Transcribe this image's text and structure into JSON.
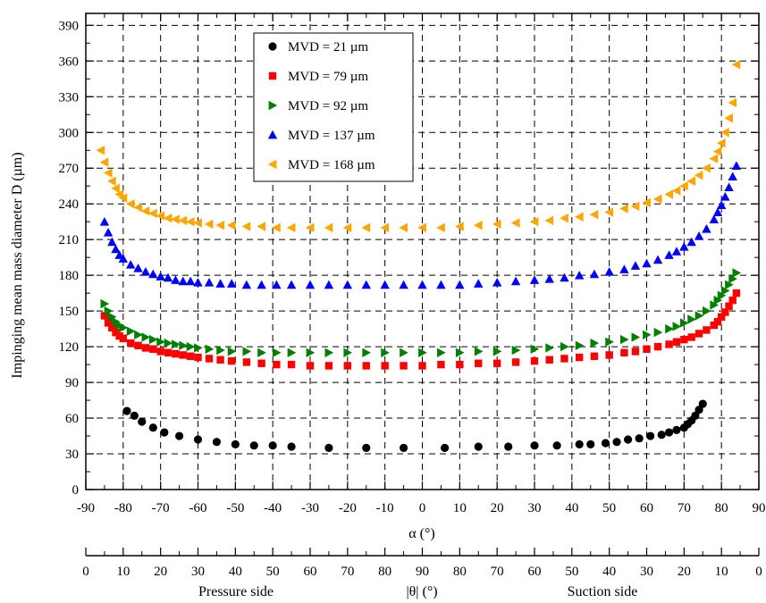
{
  "chart_data": {
    "type": "scatter",
    "ylabel": "Impinging mean mass diameter D (µm)",
    "xlabel": "α (°)",
    "x2label": "|θ| (°)",
    "x2_left_caption": "Pressure side",
    "x2_right_caption": "Suction side",
    "xlim": [
      -90,
      90
    ],
    "ylim": [
      0,
      400
    ],
    "xticks": [
      "-90",
      "-80",
      "-70",
      "-60",
      "-50",
      "-40",
      "-30",
      "-20",
      "-10",
      "0",
      "10",
      "20",
      "30",
      "40",
      "50",
      "60",
      "70",
      "80",
      "90"
    ],
    "yticks": [
      "0",
      "30",
      "60",
      "90",
      "120",
      "150",
      "180",
      "210",
      "240",
      "270",
      "300",
      "330",
      "360",
      "390"
    ],
    "x2ticks": [
      "0",
      "10",
      "20",
      "30",
      "40",
      "50",
      "60",
      "70",
      "80",
      "90",
      "80",
      "70",
      "60",
      "50",
      "40",
      "30",
      "20",
      "10",
      "0"
    ],
    "grid": true,
    "legend_position": "top-left",
    "series": [
      {
        "name": "MVD = 21 µm",
        "marker": "circle",
        "color": "#000000",
        "x": [
          -79,
          -77,
          -75,
          -72,
          -69,
          -65,
          -60,
          -55,
          -50,
          -45,
          -40,
          -35,
          -25,
          -15,
          -5,
          6,
          15,
          23,
          30,
          36,
          42,
          45,
          49,
          52,
          55,
          58,
          61,
          64,
          66,
          68,
          70,
          71,
          72,
          73,
          74,
          75
        ],
        "y": [
          66,
          62,
          57,
          52,
          48,
          45,
          42,
          40,
          38,
          37,
          37,
          36,
          35,
          35,
          35,
          35,
          36,
          36,
          37,
          37,
          38,
          38,
          39,
          40,
          42,
          43,
          45,
          46,
          48,
          50,
          52,
          55,
          58,
          62,
          67,
          72
        ]
      },
      {
        "name": "MVD = 79 µm",
        "marker": "square",
        "color": "#ff0000",
        "x": [
          -85,
          -84,
          -83,
          -82,
          -81,
          -80,
          -78,
          -76,
          -74,
          -72,
          -70,
          -68,
          -66,
          -64,
          -62,
          -60,
          -57,
          -54,
          -51,
          -47,
          -43,
          -39,
          -35,
          -30,
          -25,
          -20,
          -15,
          -10,
          -5,
          0,
          5,
          10,
          15,
          20,
          25,
          30,
          34,
          38,
          42,
          46,
          50,
          54,
          57,
          60,
          63,
          66,
          68,
          70,
          72,
          74,
          76,
          78,
          79,
          80,
          81,
          82,
          83,
          84
        ],
        "y": [
          146,
          140,
          136,
          132,
          129,
          127,
          123,
          121,
          119,
          118,
          116,
          115,
          114,
          113,
          112,
          111,
          110,
          109,
          108,
          107,
          106,
          105,
          105,
          104,
          104,
          104,
          104,
          104,
          104,
          104,
          105,
          105,
          106,
          106,
          107,
          108,
          109,
          110,
          111,
          112,
          113,
          115,
          116,
          118,
          120,
          122,
          124,
          126,
          128,
          131,
          134,
          138,
          141,
          145,
          149,
          154,
          159,
          165
        ]
      },
      {
        "name": "MVD = 92 µm",
        "marker": "triangle-right",
        "color": "#008000",
        "x": [
          -85,
          -84,
          -83,
          -82,
          -81,
          -80,
          -78,
          -76,
          -74,
          -72,
          -70,
          -68,
          -66,
          -64,
          -62,
          -60,
          -57,
          -54,
          -51,
          -47,
          -43,
          -39,
          -35,
          -30,
          -25,
          -20,
          -15,
          -10,
          -5,
          0,
          5,
          10,
          15,
          20,
          25,
          30,
          34,
          38,
          42,
          46,
          50,
          54,
          57,
          60,
          63,
          66,
          68,
          70,
          72,
          74,
          76,
          78,
          79,
          80,
          81,
          82,
          83,
          84
        ],
        "y": [
          156,
          150,
          145,
          141,
          138,
          136,
          133,
          130,
          128,
          126,
          124,
          123,
          122,
          121,
          120,
          119,
          118,
          117,
          116,
          116,
          115,
          115,
          115,
          115,
          115,
          115,
          115,
          115,
          115,
          115,
          115,
          115,
          116,
          116,
          117,
          118,
          119,
          120,
          121,
          123,
          124,
          126,
          128,
          130,
          132,
          135,
          137,
          140,
          143,
          146,
          150,
          155,
          159,
          163,
          167,
          172,
          177,
          182
        ]
      },
      {
        "name": "MVD = 137 µm",
        "marker": "triangle-up",
        "color": "#0000ff",
        "x": [
          -85,
          -84,
          -83,
          -82,
          -81,
          -80,
          -78,
          -76,
          -74,
          -72,
          -70,
          -68,
          -66,
          -64,
          -62,
          -60,
          -57,
          -54,
          -51,
          -47,
          -43,
          -39,
          -35,
          -30,
          -25,
          -20,
          -15,
          -10,
          -5,
          0,
          5,
          10,
          15,
          20,
          25,
          30,
          34,
          38,
          42,
          46,
          50,
          54,
          57,
          60,
          63,
          66,
          68,
          70,
          72,
          74,
          76,
          78,
          79,
          80,
          81,
          82,
          83,
          84
        ],
        "y": [
          225,
          216,
          208,
          202,
          197,
          194,
          189,
          186,
          183,
          181,
          179,
          178,
          176,
          175,
          175,
          174,
          174,
          173,
          173,
          172,
          172,
          172,
          172,
          172,
          172,
          172,
          172,
          172,
          172,
          172,
          172,
          172,
          173,
          174,
          175,
          176,
          177,
          178,
          180,
          181,
          183,
          185,
          188,
          190,
          193,
          197,
          200,
          204,
          208,
          213,
          219,
          227,
          233,
          239,
          246,
          254,
          263,
          272
        ]
      },
      {
        "name": "MVD = 168 µm",
        "marker": "triangle-left",
        "color": "#ffa500",
        "x": [
          -86,
          -85,
          -84,
          -83,
          -82,
          -81,
          -80,
          -78,
          -76,
          -74,
          -72,
          -70,
          -68,
          -66,
          -64,
          -62,
          -60,
          -57,
          -54,
          -51,
          -47,
          -43,
          -39,
          -35,
          -30,
          -25,
          -20,
          -15,
          -10,
          -5,
          0,
          5,
          10,
          15,
          20,
          25,
          30,
          34,
          38,
          42,
          46,
          50,
          54,
          57,
          60,
          63,
          66,
          68,
          70,
          72,
          74,
          76,
          78,
          79,
          80,
          81,
          82,
          83,
          84
        ],
        "y": [
          285,
          275,
          266,
          259,
          253,
          248,
          245,
          240,
          237,
          234,
          232,
          230,
          228,
          227,
          226,
          225,
          224,
          223,
          222,
          222,
          221,
          221,
          220,
          220,
          220,
          220,
          220,
          220,
          220,
          220,
          220,
          220,
          221,
          222,
          223,
          224,
          225,
          226,
          228,
          229,
          231,
          233,
          236,
          238,
          241,
          244,
          248,
          251,
          255,
          259,
          264,
          270,
          278,
          284,
          291,
          300,
          312,
          325,
          357
        ]
      }
    ]
  }
}
